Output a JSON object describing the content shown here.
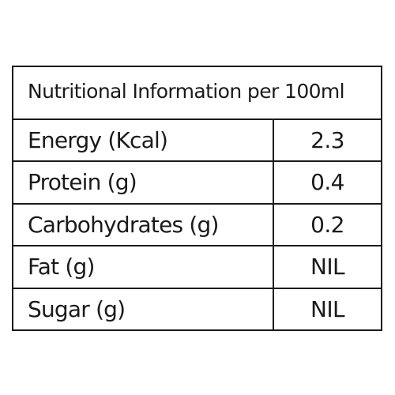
{
  "table": {
    "header": "Nutritional Information per 100ml",
    "rows": [
      {
        "label": "Energy (Kcal)",
        "value": "2.3"
      },
      {
        "label": "Protein (g)",
        "value": "0.4"
      },
      {
        "label": "Carbohydrates (g)",
        "value": "0.2"
      },
      {
        "label": "Fat (g)",
        "value": "NIL"
      },
      {
        "label": "Sugar (g)",
        "value": "NIL"
      }
    ]
  },
  "colors": {
    "text": "#1a1a1a",
    "border": "#1a1a1a",
    "background": "#ffffff"
  }
}
